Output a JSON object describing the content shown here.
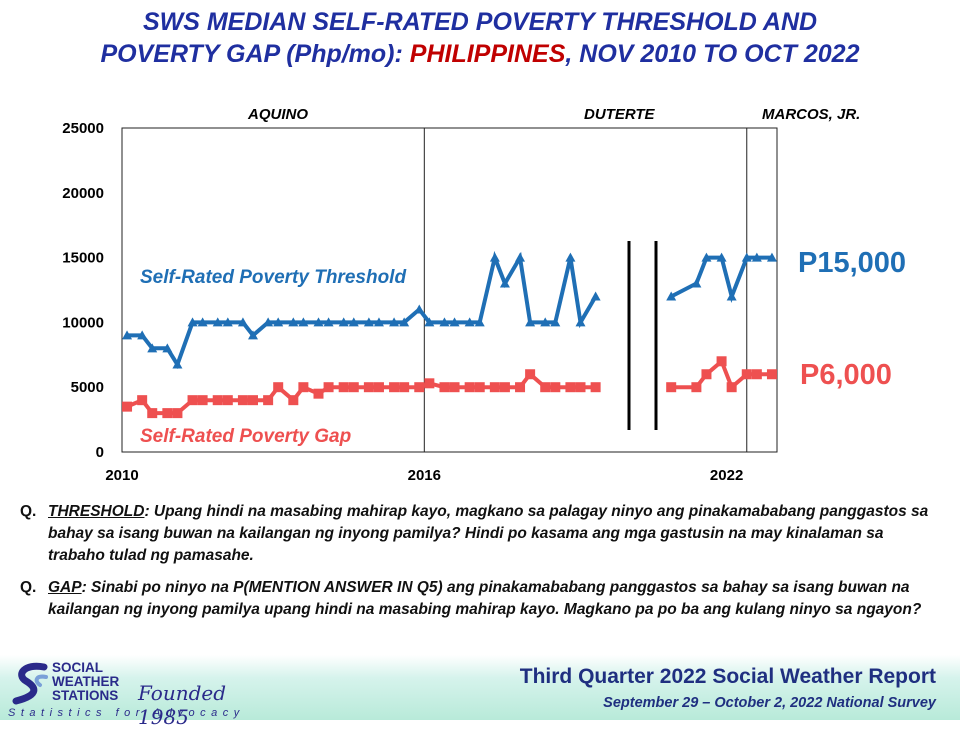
{
  "title": {
    "part1": "SWS MEDIAN SELF-RATED POVERTY THRESHOLD AND",
    "part2": "POVERTY GAP (Php/mo): ",
    "highlight": "PHILIPPINES",
    "part3": ", NOV 2010 TO OCT 2022"
  },
  "chart_data": {
    "type": "line",
    "ylim": [
      0,
      25000
    ],
    "yticks": [
      "25000",
      "20000",
      "15000",
      "10000",
      "5000",
      "0"
    ],
    "xticks": [
      "2010",
      "2016",
      "2022"
    ],
    "xlim": [
      2010,
      2023
    ],
    "grid": false,
    "administrations": [
      "AQUINO",
      "DUTERTE",
      "MARCOS, JR."
    ],
    "series": [
      {
        "name": "Self-Rated Poverty Threshold",
        "end_label": "P15,000",
        "color": "#1f6fb5",
        "segments": [
          {
            "x": [
              2010.1,
              2010.4,
              2010.6,
              2010.9,
              2011.1,
              2011.4,
              2011.6,
              2011.9,
              2012.1,
              2012.4,
              2012.6,
              2012.9,
              2013.1,
              2013.4,
              2013.6,
              2013.9,
              2014.1,
              2014.4,
              2014.6,
              2014.9,
              2015.1,
              2015.4,
              2015.6,
              2015.9,
              2016.1,
              2016.4,
              2016.6,
              2016.9,
              2017.1,
              2017.4,
              2017.6,
              2017.9,
              2018.1,
              2018.4,
              2018.6,
              2018.9,
              2019.1,
              2019.4,
              2019.6,
              2019.9
            ],
            "y": [
              9000,
              9000,
              8000,
              8000,
              6750,
              10000,
              10000,
              10000,
              10000,
              10000,
              9000,
              10000,
              10000,
              10000,
              10000,
              10000,
              10000,
              10000,
              10000,
              10000,
              10000,
              10000,
              10000,
              11000,
              10000,
              10000,
              10000,
              10000,
              10000,
              15000,
              13000,
              15000,
              10000,
              10000,
              10000,
              15000,
              10000,
              12000,
              null,
              null
            ]
          },
          {
            "x": [
              2020.9,
              2021.4,
              2021.6,
              2021.9,
              2022.1,
              2022.4,
              2022.6,
              2022.9
            ],
            "y": [
              12000,
              13000,
              15000,
              15000,
              12000,
              15000,
              15000,
              15000
            ]
          }
        ]
      },
      {
        "name": "Self-Rated Poverty Gap",
        "end_label": "P6,000",
        "color": "#ee5050",
        "segments": [
          {
            "x": [
              2010.1,
              2010.4,
              2010.6,
              2010.9,
              2011.1,
              2011.4,
              2011.6,
              2011.9,
              2012.1,
              2012.4,
              2012.6,
              2012.9,
              2013.1,
              2013.4,
              2013.6,
              2013.9,
              2014.1,
              2014.4,
              2014.6,
              2014.9,
              2015.1,
              2015.4,
              2015.6,
              2015.9,
              2016.1,
              2016.4,
              2016.6,
              2016.9,
              2017.1,
              2017.4,
              2017.6,
              2017.9,
              2018.1,
              2018.4,
              2018.6,
              2018.9,
              2019.1,
              2019.4
            ],
            "y": [
              3500,
              4000,
              3000,
              3000,
              3000,
              4000,
              4000,
              4000,
              4000,
              4000,
              4000,
              4000,
              5000,
              4000,
              5000,
              4500,
              5000,
              5000,
              5000,
              5000,
              5000,
              5000,
              5000,
              5000,
              5300,
              5000,
              5000,
              5000,
              5000,
              5000,
              5000,
              5000,
              6000,
              5000,
              5000,
              5000,
              5000,
              5000
            ]
          },
          {
            "x": [
              2020.9,
              2021.4,
              2021.6,
              2021.9,
              2022.1,
              2022.4,
              2022.6,
              2022.9
            ],
            "y": [
              5000,
              5000,
              6000,
              7000,
              5000,
              6000,
              6000,
              6000
            ]
          }
        ]
      }
    ]
  },
  "questions": [
    {
      "marker": "Q.",
      "keyword": "THRESHOLD",
      "text": ": Upang hindi na masabing mahirap kayo, magkano sa palagay ninyo ang pinakamababang panggastos sa bahay sa isang buwan na kailangan ng inyong pamilya? Hindi po kasama ang mga gastusin na may kinalaman sa trabaho tulad ng pamasahe."
    },
    {
      "marker": "Q.",
      "keyword": "GAP",
      "text": ": Sinabi po ninyo na P(MENTION ANSWER IN Q5) ang pinakamababang panggastos sa bahay sa isang buwan na kailangan ng inyong pamilya upang hindi na masabing mahirap kayo. Magkano pa po ba ang kulang ninyo sa ngayon?"
    }
  ],
  "footer": {
    "logo_lines": [
      "SOCIAL",
      "WEATHER",
      "STATIONS"
    ],
    "founded": "Founded 1985",
    "tagline": "Statistics for Advocacy",
    "report": "Third Quarter 2022 Social Weather Report",
    "survey": "September 29 – October 2, 2022 National Survey"
  },
  "colors": {
    "title": "#1f2fa0",
    "highlight": "#c00000",
    "threshold": "#1f6fb5",
    "gap": "#ee5050"
  }
}
